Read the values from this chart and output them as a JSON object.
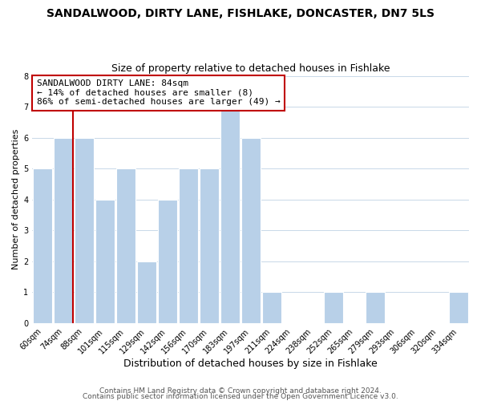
{
  "title": "SANDALWOOD, DIRTY LANE, FISHLAKE, DONCASTER, DN7 5LS",
  "subtitle": "Size of property relative to detached houses in Fishlake",
  "xlabel": "Distribution of detached houses by size in Fishlake",
  "ylabel": "Number of detached properties",
  "bins": [
    "60sqm",
    "74sqm",
    "88sqm",
    "101sqm",
    "115sqm",
    "129sqm",
    "142sqm",
    "156sqm",
    "170sqm",
    "183sqm",
    "197sqm",
    "211sqm",
    "224sqm",
    "238sqm",
    "252sqm",
    "265sqm",
    "279sqm",
    "293sqm",
    "306sqm",
    "320sqm",
    "334sqm"
  ],
  "counts": [
    5,
    6,
    6,
    4,
    5,
    2,
    4,
    5,
    5,
    7,
    6,
    1,
    0,
    0,
    1,
    0,
    1,
    0,
    0,
    0,
    1
  ],
  "highlight_bin_index": 1,
  "highlight_color": "#c00000",
  "bar_color": "#b8d0e8",
  "bar_edge_color": "#c5d8ea",
  "grid_color": "#c8d8e8",
  "annotation_line1": "SANDALWOOD DIRTY LANE: 84sqm",
  "annotation_line2": "← 14% of detached houses are smaller (8)",
  "annotation_line3": "86% of semi-detached houses are larger (49) →",
  "annotation_fontsize": 8,
  "footer1": "Contains HM Land Registry data © Crown copyright and database right 2024.",
  "footer2": "Contains public sector information licensed under the Open Government Licence v3.0.",
  "ylim": [
    0,
    8
  ],
  "title_fontsize": 10,
  "subtitle_fontsize": 9,
  "xlabel_fontsize": 9,
  "ylabel_fontsize": 8,
  "tick_fontsize": 7,
  "footer_fontsize": 6.5
}
